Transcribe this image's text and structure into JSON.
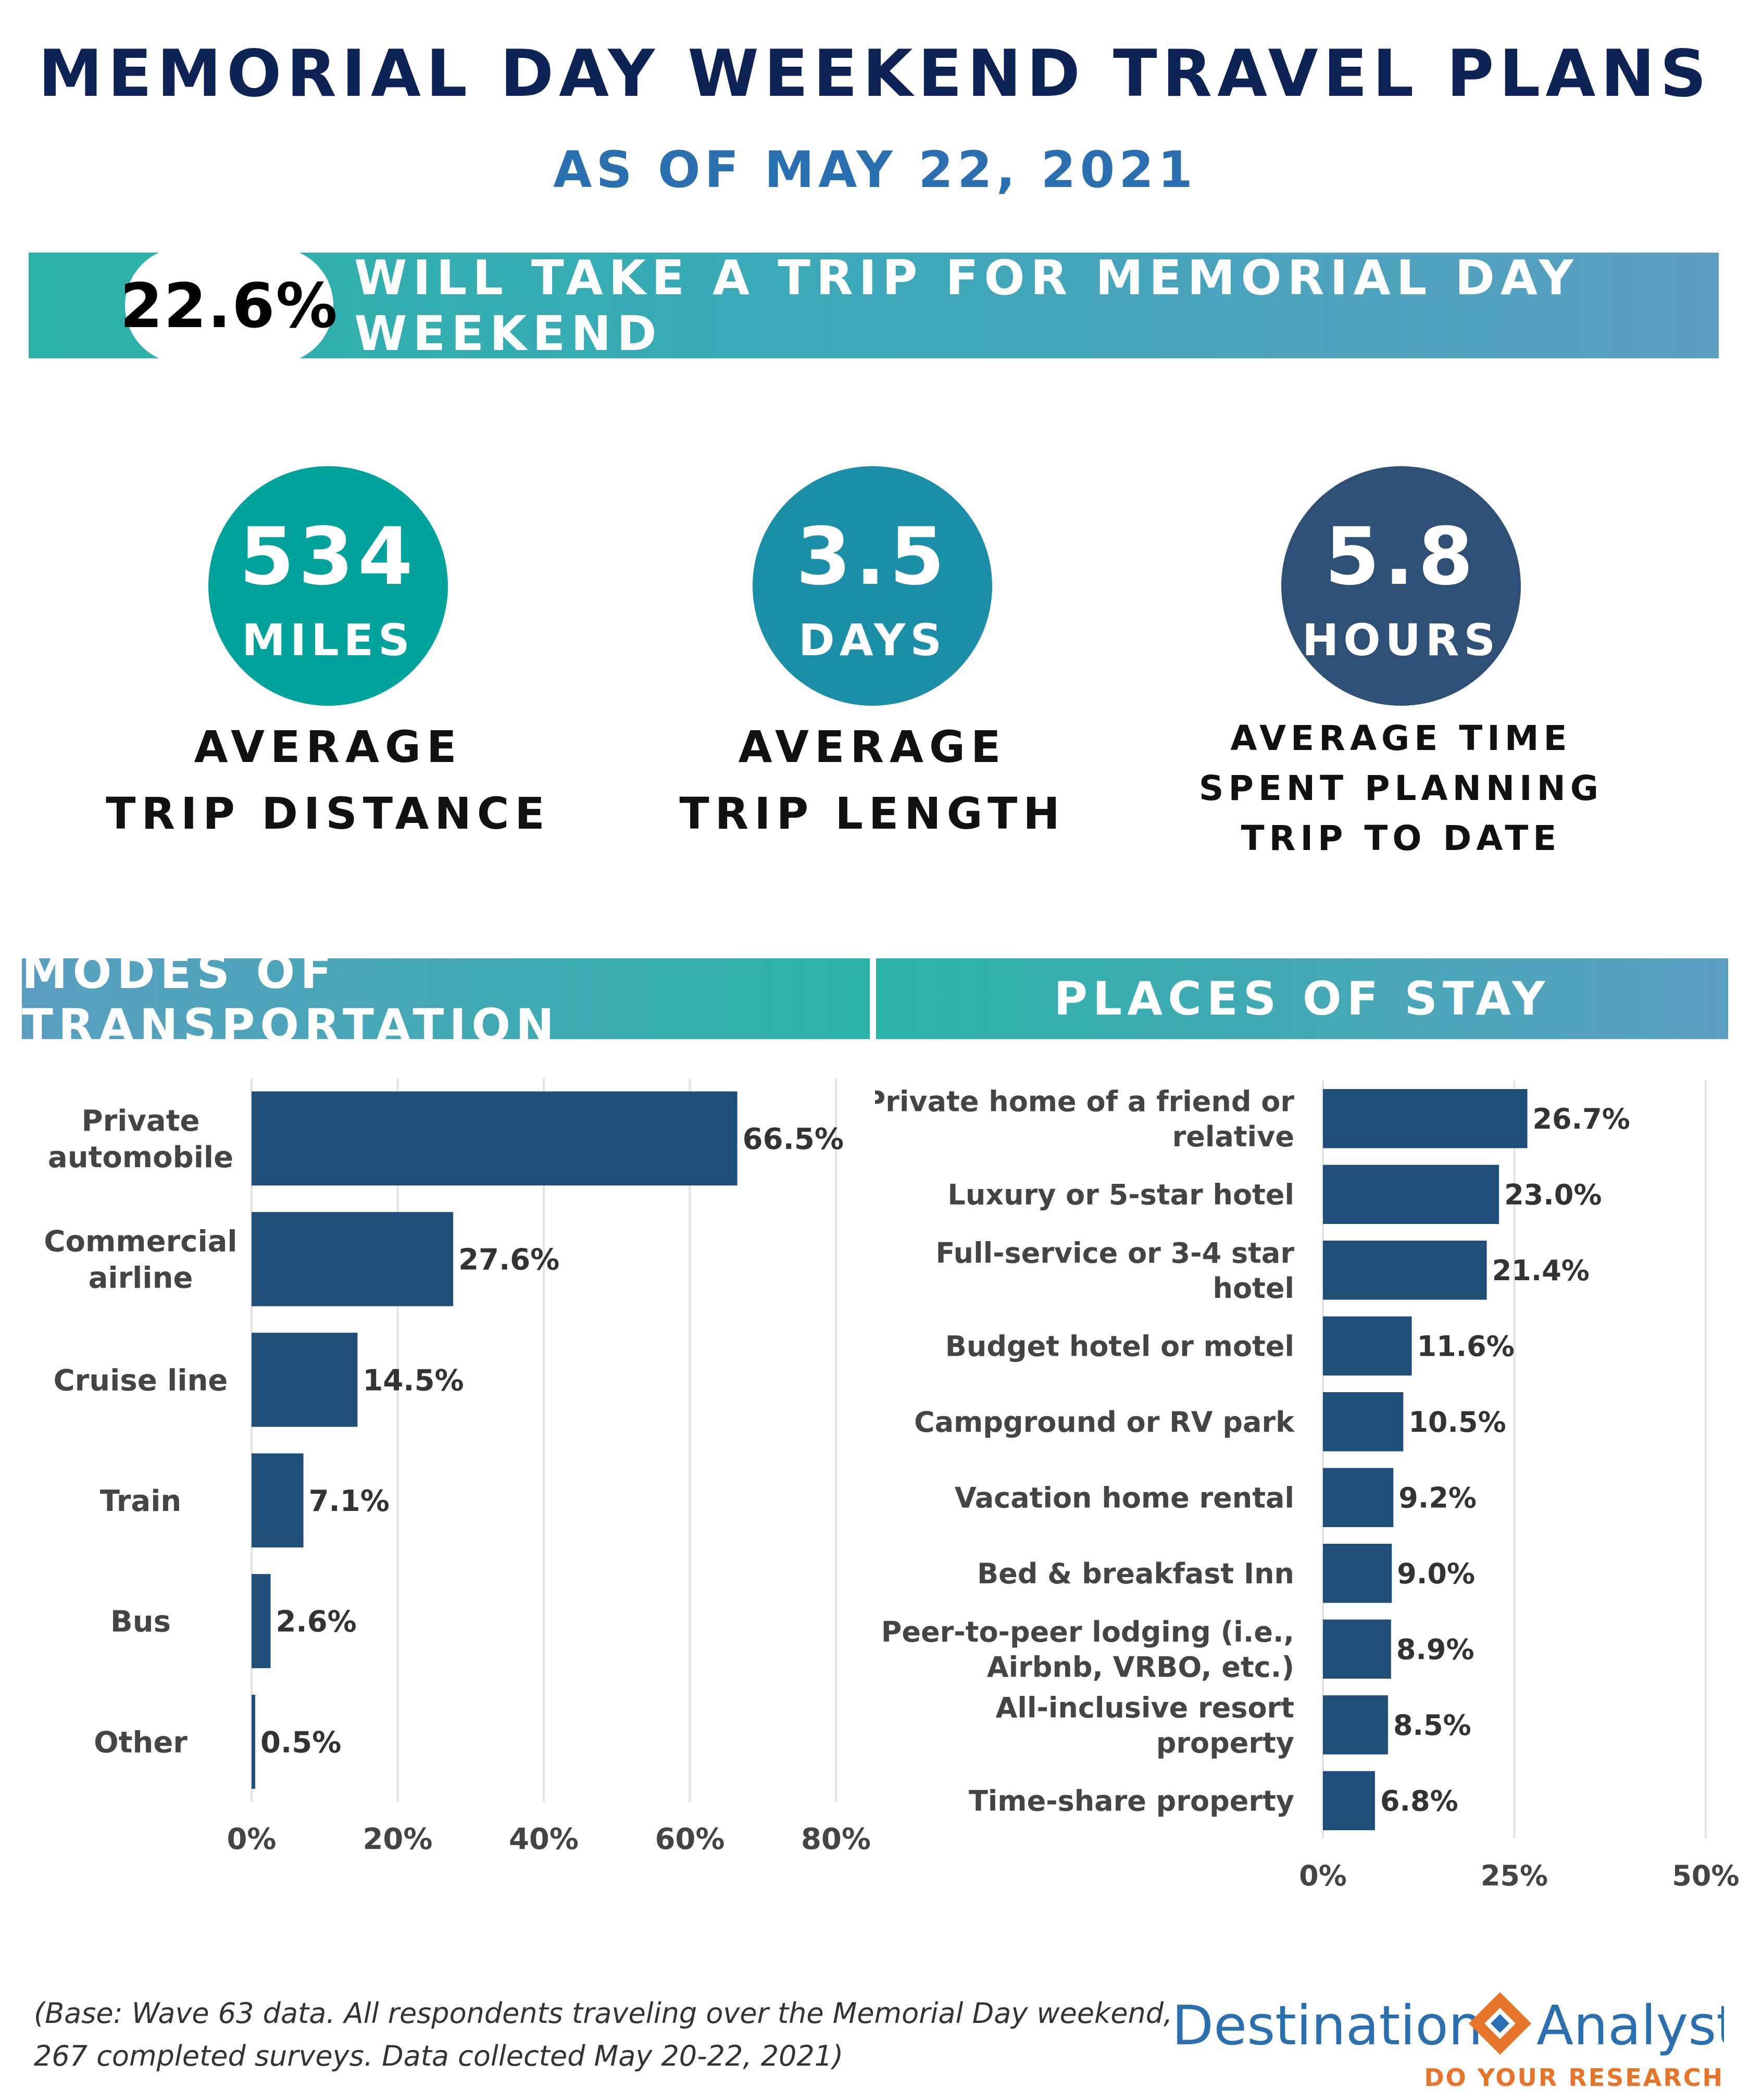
{
  "header": {
    "title": "MEMORIAL DAY WEEKEND TRAVEL PLANS",
    "subtitle": "AS OF MAY 22, 2021"
  },
  "banner": {
    "percent": "22.6%",
    "text": "WILL TAKE A TRIP FOR MEMORIAL DAY WEEKEND"
  },
  "stats": [
    {
      "value": "534",
      "unit": "MILES",
      "label_lines": [
        "AVERAGE",
        "TRIP DISTANCE"
      ],
      "color": "#00a39b"
    },
    {
      "value": "3.5",
      "unit": "DAYS",
      "label_lines": [
        "AVERAGE",
        "TRIP LENGTH"
      ],
      "color": "#1b8fa8"
    },
    {
      "value": "5.8",
      "unit": "HOURS",
      "label_lines": [
        "AVERAGE TIME",
        "SPENT PLANNING",
        "TRIP TO DATE"
      ],
      "color": "#2e5077"
    }
  ],
  "sections": {
    "transport_title": "MODES OF TRANSPORTATION",
    "stay_title": "PLACES OF STAY"
  },
  "colors": {
    "bar": "#1f4e79",
    "grid": "#e3e3e3",
    "label": "#444444",
    "teal": "#2bb3a8",
    "blue_header": "#5a9ec2"
  },
  "chart_data": [
    {
      "type": "bar",
      "orientation": "horizontal",
      "title": "MODES OF TRANSPORTATION",
      "categories": [
        [
          "Private",
          "automobile"
        ],
        [
          "Commercial",
          "airline"
        ],
        [
          "Cruise line"
        ],
        [
          "Train"
        ],
        [
          "Bus"
        ],
        [
          "Other"
        ]
      ],
      "values": [
        66.5,
        27.6,
        14.5,
        7.1,
        2.6,
        0.5
      ],
      "value_labels": [
        "66.5%",
        "27.6%",
        "14.5%",
        "7.1%",
        "2.6%",
        "0.5%"
      ],
      "xlim": [
        0,
        80
      ],
      "xticks": [
        0,
        20,
        40,
        60,
        80
      ],
      "xtick_labels": [
        "0%",
        "20%",
        "40%",
        "60%",
        "80%"
      ],
      "grid": true,
      "legend": false
    },
    {
      "type": "bar",
      "orientation": "horizontal",
      "title": "PLACES OF STAY",
      "categories": [
        [
          "Private home of a friend or",
          "relative"
        ],
        [
          "Luxury or 5-star hotel"
        ],
        [
          "Full-service or 3-4 star",
          "hotel"
        ],
        [
          "Budget hotel or motel"
        ],
        [
          "Campground or RV park"
        ],
        [
          "Vacation home rental"
        ],
        [
          "Bed & breakfast Inn"
        ],
        [
          "Peer-to-peer lodging (i.e.,",
          "Airbnb, VRBO, etc.)"
        ],
        [
          "All-inclusive resort",
          "property"
        ],
        [
          "Time-share property"
        ]
      ],
      "values": [
        26.7,
        23.0,
        21.4,
        11.6,
        10.5,
        9.2,
        9.0,
        8.9,
        8.5,
        6.8
      ],
      "value_labels": [
        "26.7%",
        "23.0%",
        "21.4%",
        "11.6%",
        "10.5%",
        "9.2%",
        "9.0%",
        "8.9%",
        "8.5%",
        "6.8%"
      ],
      "xlim": [
        0,
        50
      ],
      "xticks": [
        0,
        25,
        50
      ],
      "xtick_labels": [
        "0%",
        "25%",
        "50%"
      ],
      "grid": true,
      "legend": false
    }
  ],
  "footnote": {
    "lines": [
      "(Base: Wave 63 data. All respondents traveling over the Memorial Day weekend,",
      "267 completed surveys. Data collected May 20-22, 2021)"
    ]
  },
  "logo": {
    "name_left": "Destination",
    "name_right": "Analysts",
    "tagline": "DO YOUR RESEARCH",
    "color_blue": "#2a6fb0",
    "color_orange": "#e8742a"
  }
}
